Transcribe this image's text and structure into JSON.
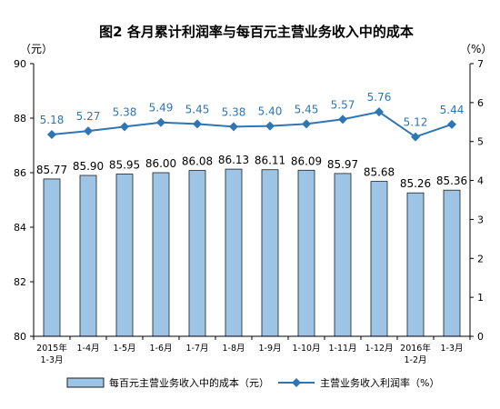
{
  "chart_data": {
    "type": "bar",
    "title": "图2 各月累计利润率与每百元主营业务收入中的成本",
    "left_axis_unit": "（元）",
    "right_axis_unit": "（%）",
    "categories": [
      [
        "2015年",
        "1-3月"
      ],
      [
        "1-4月"
      ],
      [
        "1-5月"
      ],
      [
        "1-6月"
      ],
      [
        "1-7月"
      ],
      [
        "1-8月"
      ],
      [
        "1-9月"
      ],
      [
        "1-10月"
      ],
      [
        "1-11月"
      ],
      [
        "1-12月"
      ],
      [
        "2016年",
        "1-2月"
      ],
      [
        "1-3月"
      ]
    ],
    "left_axis": {
      "ylim": [
        80,
        90
      ],
      "ticks": [
        "80",
        "82",
        "84",
        "86",
        "88",
        "90"
      ]
    },
    "right_axis": {
      "ylim": [
        0,
        7
      ],
      "ticks": [
        "0",
        "1",
        "2",
        "3",
        "4",
        "5",
        "6",
        "7"
      ]
    },
    "series": [
      {
        "name": "每百元主营业务收入中的成本（元）",
        "kind": "bar",
        "axis": "left",
        "values": [
          85.77,
          85.9,
          85.95,
          86.0,
          86.08,
          86.13,
          86.11,
          86.09,
          85.97,
          85.68,
          85.26,
          85.36
        ],
        "labels": [
          "85.77",
          "85.90",
          "85.95",
          "86.00",
          "86.08",
          "86.13",
          "86.11",
          "86.09",
          "85.97",
          "85.68",
          "85.26",
          "85.36"
        ]
      },
      {
        "name": "主营业务收入利润率（%）",
        "kind": "line",
        "axis": "right",
        "values": [
          5.18,
          5.27,
          5.38,
          5.49,
          5.45,
          5.38,
          5.4,
          5.45,
          5.57,
          5.76,
          5.12,
          5.44
        ],
        "labels": [
          "5.18",
          "5.27",
          "5.38",
          "5.49",
          "5.45",
          "5.38",
          "5.40",
          "5.45",
          "5.57",
          "5.76",
          "5.12",
          "5.44"
        ]
      }
    ],
    "colors": {
      "bar_fill": "#9dc3e6",
      "bar_stroke": "#1f1f1f",
      "line": "#2e75b6",
      "point_label": "#2e75b6",
      "bar_label": "#000000"
    },
    "legend_position": "bottom",
    "grid": false
  }
}
